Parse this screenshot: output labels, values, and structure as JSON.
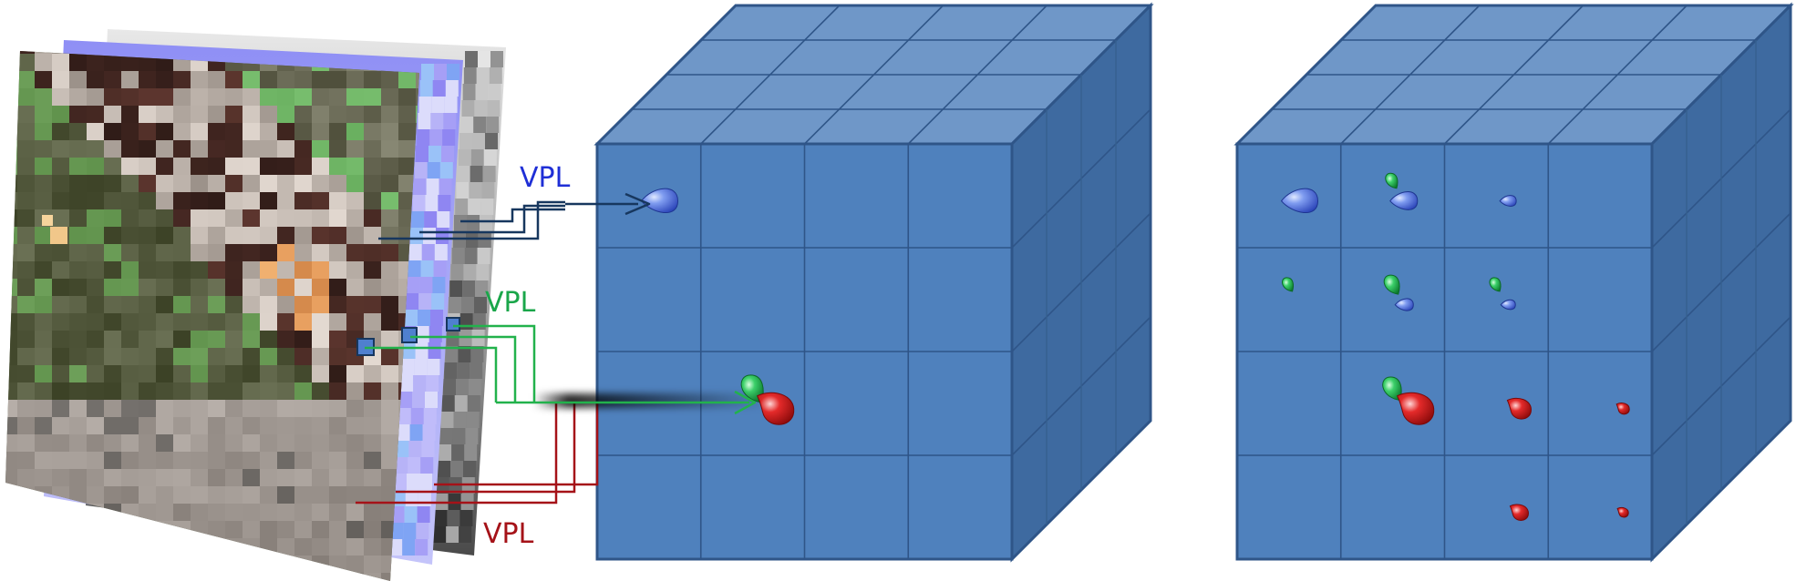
{
  "labels": {
    "vpl_blue": "VPL",
    "vpl_green": "VPL",
    "vpl_red": "VPL"
  },
  "colors": {
    "vpl_blue": "#1f2fd6",
    "vpl_green": "#1aa64a",
    "vpl_red": "#a51218",
    "blue_line": "#17375e",
    "green_line": "#22b24c",
    "red_line": "#a51218",
    "cube_front": "#4f81bd",
    "cube_top": "#6f97c8",
    "cube_side": "#3e6aa0",
    "cube_edge": "#2f5588",
    "light_blue": "#5a7be0",
    "light_green": "#19a64a",
    "light_red": "#d11a1a"
  },
  "grid": {
    "rows": 4,
    "cols": 4
  },
  "left_cube_lights": [
    {
      "row": 0,
      "col": 0,
      "color": "blue",
      "scale": 1.0
    },
    {
      "row": 2,
      "col": 1,
      "color": "green",
      "scale": 1.0
    },
    {
      "row": 2,
      "col": 1,
      "color": "red",
      "scale": 1.0
    }
  ],
  "right_cube_lights": [
    {
      "row": 0,
      "col": 0,
      "color": "blue",
      "scale": 1.0
    },
    {
      "row": 0,
      "col": 1,
      "color": "green",
      "scale": 0.55
    },
    {
      "row": 0,
      "col": 1,
      "color": "blue",
      "scale": 0.75
    },
    {
      "row": 0,
      "col": 2,
      "color": "blue",
      "scale": 0.45
    },
    {
      "row": 1,
      "col": 0,
      "color": "green",
      "scale": 0.5
    },
    {
      "row": 1,
      "col": 1,
      "color": "green",
      "scale": 0.7
    },
    {
      "row": 1,
      "col": 1,
      "color": "blue",
      "scale": 0.5
    },
    {
      "row": 1,
      "col": 2,
      "color": "green",
      "scale": 0.5
    },
    {
      "row": 1,
      "col": 2,
      "color": "blue",
      "scale": 0.4
    },
    {
      "row": 2,
      "col": 1,
      "color": "green",
      "scale": 0.85
    },
    {
      "row": 2,
      "col": 1,
      "color": "red",
      "scale": 1.0
    },
    {
      "row": 2,
      "col": 2,
      "color": "red",
      "scale": 0.65
    },
    {
      "row": 2,
      "col": 3,
      "color": "red",
      "scale": 0.35
    },
    {
      "row": 3,
      "col": 2,
      "color": "red",
      "scale": 0.5
    },
    {
      "row": 3,
      "col": 3,
      "color": "red",
      "scale": 0.3
    }
  ]
}
